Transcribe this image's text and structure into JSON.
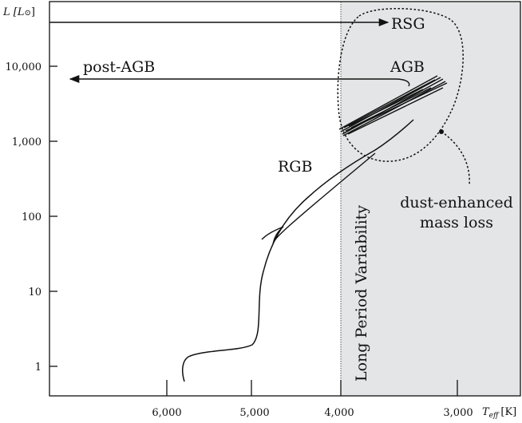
{
  "diagram": {
    "colors": {
      "ink": "#111111",
      "lpv_region_fill": "#e3e5e6",
      "background": "#ffffff"
    },
    "axes": {
      "y_label_html": "L [L⊙]",
      "y_label_main": "L [L",
      "y_label_sun": "⊙",
      "y_label_close": "]",
      "x_label_T": "T",
      "x_label_sub": "eff",
      "x_label_unit": "[K]",
      "y_ticks": [
        "10,000",
        "1,000",
        "100",
        "10",
        "1"
      ],
      "x_ticks": [
        "6,000",
        "5,000",
        "4,000",
        "3,000"
      ],
      "y_scale": "log",
      "x_direction": "reversed"
    },
    "labels": {
      "rsg": "RSG",
      "agb": "AGB",
      "post_agb": "post-AGB",
      "rgb": "RGB",
      "dust_line1": "dust-enhanced",
      "dust_line2": "mass loss",
      "lpv": "Long Period Variability"
    }
  }
}
